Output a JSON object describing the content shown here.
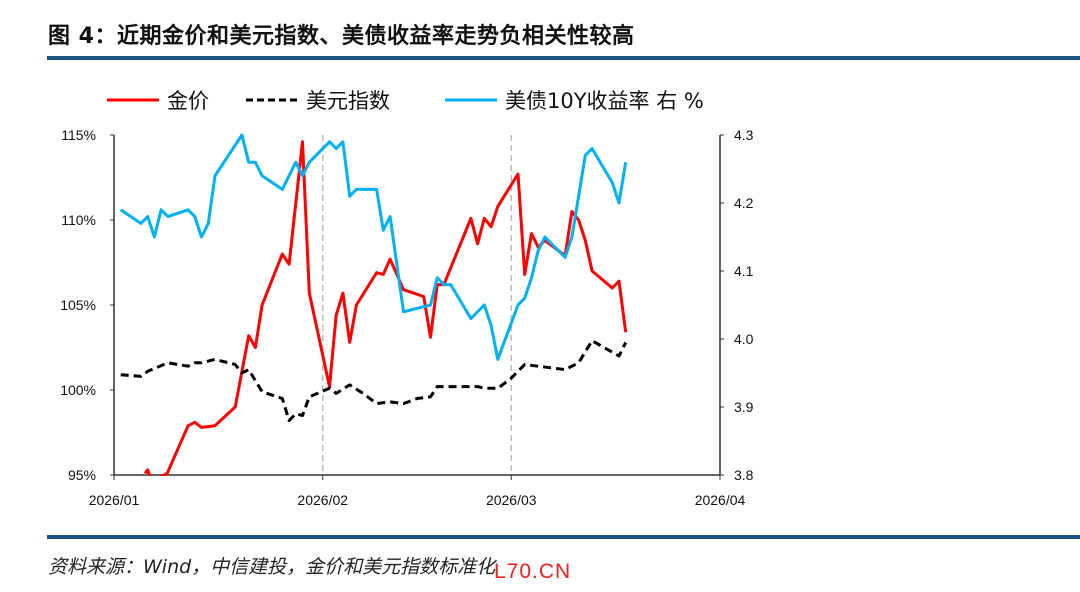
{
  "title": "图 4：近期金价和美元指数、美债收益率走势负相关性较高",
  "source": "资料来源：Wind，中信建投，金价和美元指数标准化",
  "watermark": "L70.CN",
  "colors": {
    "gold": "#ff0000",
    "dxy": "#000000",
    "ust": "#00b0f0",
    "rule": "#1c5484"
  },
  "chart_data": {
    "type": "line",
    "xlabel": "",
    "ylabel": "",
    "x_unit": "days since 2026-01-01",
    "xlim": [
      0,
      90
    ],
    "x_ticks": [
      {
        "x": 0,
        "label": "2026/01"
      },
      {
        "x": 31,
        "label": "2026/02"
      },
      {
        "x": 59,
        "label": "2026/03"
      },
      {
        "x": 90,
        "label": "2026/04"
      }
    ],
    "vlines_at": [
      31,
      59
    ],
    "y_left": {
      "lim": [
        95,
        115
      ],
      "ticks": [
        {
          "v": 115,
          "label": "115%"
        },
        {
          "v": 110,
          "label": "110%"
        },
        {
          "v": 105,
          "label": "105%"
        },
        {
          "v": 100,
          "label": "100%"
        },
        {
          "v": 95,
          "label": "95%"
        }
      ]
    },
    "y_right": {
      "lim": [
        3.8,
        4.3
      ],
      "ticks": [
        {
          "v": 4.3,
          "label": "4.3"
        },
        {
          "v": 4.2,
          "label": "4.2"
        },
        {
          "v": 4.1,
          "label": "4.1"
        },
        {
          "v": 4.0,
          "label": "4.0"
        },
        {
          "v": 3.9,
          "label": "3.9"
        },
        {
          "v": 3.8,
          "label": "3.8"
        }
      ]
    },
    "legend_position": "top",
    "series": [
      {
        "name": "金价",
        "axis": "left",
        "style": "solid",
        "color": "#ff0000",
        "x": [
          4.6,
          5,
          5.6,
          7.9,
          11,
          12,
          13,
          15,
          18,
          20,
          21,
          22,
          25,
          26,
          28,
          29,
          32,
          33,
          34,
          35,
          36,
          39,
          40,
          41,
          43,
          46,
          47,
          48,
          49,
          53,
          54,
          55,
          56,
          57,
          60,
          61,
          62,
          63,
          64,
          67,
          68,
          69,
          70,
          71,
          74,
          75,
          76
        ],
        "y": [
          95.1,
          95.3,
          94.6,
          95.1,
          97.9,
          98.1,
          97.8,
          97.9,
          99.0,
          103.2,
          102.5,
          105.0,
          108.0,
          107.4,
          114.6,
          105.7,
          100.2,
          104.4,
          105.7,
          102.8,
          105.0,
          106.9,
          106.8,
          107.7,
          105.9,
          105.5,
          103.1,
          106.2,
          106.2,
          110.1,
          108.6,
          110.1,
          109.6,
          110.8,
          112.7,
          106.8,
          109.2,
          108.4,
          108.8,
          107.9,
          110.5,
          110.0,
          108.8,
          107.0,
          106.0,
          106.4,
          103.4
        ]
      },
      {
        "name": "美元指数",
        "axis": "left",
        "style": "dashed",
        "color": "#000000",
        "x": [
          1,
          4,
          5,
          8,
          11,
          12,
          13,
          15,
          17,
          18,
          19,
          20,
          22,
          25,
          26,
          27,
          28,
          29,
          32,
          33,
          35,
          37,
          39,
          41,
          43,
          45,
          47,
          48,
          53,
          54,
          55,
          57,
          59,
          61,
          63,
          67,
          69,
          71,
          75,
          76
        ],
        "y": [
          100.9,
          100.8,
          101.1,
          101.6,
          101.4,
          101.6,
          101.6,
          101.8,
          101.6,
          101.5,
          101.0,
          101.2,
          99.9,
          99.5,
          98.2,
          98.6,
          98.5,
          99.6,
          100.1,
          99.8,
          100.3,
          99.8,
          99.2,
          99.3,
          99.2,
          99.5,
          99.6,
          100.2,
          100.2,
          100.2,
          100.1,
          100.1,
          100.7,
          101.5,
          101.4,
          101.2,
          101.6,
          102.9,
          102.0,
          102.8
        ]
      },
      {
        "name": "美债10Y收益率 右 %",
        "axis": "right",
        "style": "solid",
        "color": "#00b0f0",
        "x": [
          1,
          4,
          5,
          6,
          7,
          8,
          11,
          12,
          13,
          14,
          15,
          19,
          20,
          21,
          22,
          25,
          27,
          28,
          29,
          32,
          33,
          34,
          35,
          36,
          39,
          40,
          41,
          43,
          47,
          48,
          49,
          50,
          53,
          55,
          56,
          57,
          60,
          61,
          62,
          63,
          64,
          67,
          68,
          70,
          71,
          74,
          75,
          76
        ],
        "y": [
          4.19,
          4.17,
          4.18,
          4.15,
          4.19,
          4.18,
          4.19,
          4.18,
          4.15,
          4.17,
          4.24,
          4.3,
          4.26,
          4.26,
          4.24,
          4.22,
          4.26,
          4.24,
          4.26,
          4.29,
          4.28,
          4.29,
          4.21,
          4.22,
          4.22,
          4.16,
          4.18,
          4.04,
          4.05,
          4.09,
          4.08,
          4.08,
          4.03,
          4.05,
          4.02,
          3.97,
          4.05,
          4.06,
          4.09,
          4.13,
          4.15,
          4.12,
          4.15,
          4.27,
          4.28,
          4.23,
          4.2,
          4.26
        ]
      }
    ]
  }
}
